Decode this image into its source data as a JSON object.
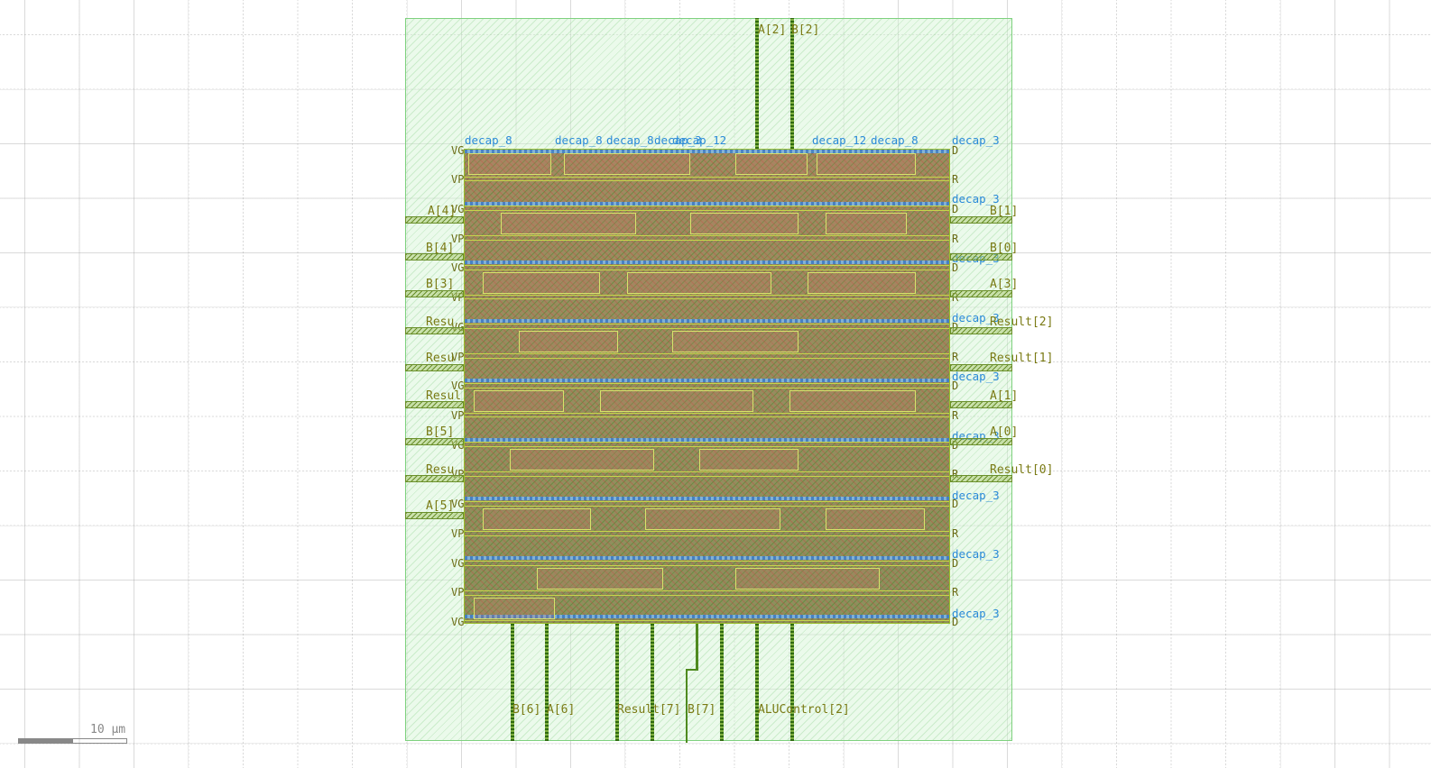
{
  "scale": {
    "label": "10 µm"
  },
  "pins": {
    "top": [
      "A[2]",
      "B[2]"
    ],
    "left": [
      "A[4]",
      "B[4]",
      "B[3]",
      "Resu",
      "Resu",
      "Resul",
      "B[5]",
      "Resu",
      "A[5]"
    ],
    "right": [
      "B[1]",
      "B[0]",
      "A[3]",
      "Result[2]",
      "Result[1]",
      "A[1]",
      "A[0]",
      "Result[0]"
    ],
    "bottom": [
      "B[6]",
      "A[6]",
      "Result[7]",
      "B[7]",
      "ALUControl[2]"
    ]
  },
  "cells_top": [
    "decap_8",
    "decap_8",
    "decap_8",
    "decap_3",
    "decap_12",
    "decap_12",
    "decap_8",
    "decap_3"
  ],
  "cells_right": [
    "decap_3",
    "decap_3",
    "decap_3",
    "decap_3",
    "decap_3",
    "decap_3",
    "decap_3",
    "decap_3"
  ],
  "rails_left": [
    "VG",
    "VP",
    "VG",
    "VP",
    "VG",
    "VP",
    "VG",
    "VP",
    "VG",
    "VP",
    "VG",
    "VP",
    "VG",
    "VP",
    "VG",
    "VP",
    "VG"
  ],
  "rails_right": [
    "D",
    "R",
    "D",
    "R",
    "D",
    "R",
    "D",
    "R",
    "D",
    "R",
    "D",
    "R",
    "D",
    "R",
    "D",
    "R",
    "D"
  ],
  "colors": {
    "die_fill": "#d2f5d2",
    "die_border": "#7fd17f",
    "metal_pin": "#4f8a1f",
    "pin_label": "#7a7a14",
    "cell_label": "#2a8ad8",
    "rail": "#3a7fd4"
  }
}
